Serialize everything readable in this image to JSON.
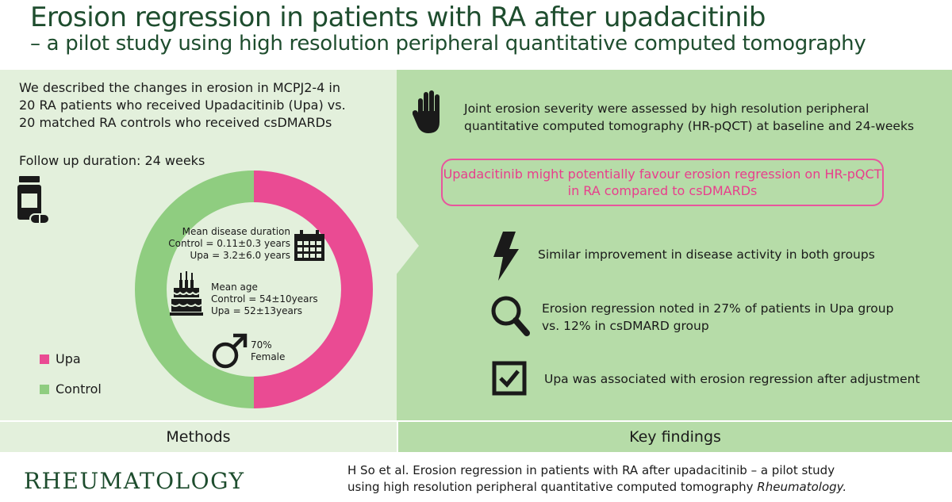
{
  "header": {
    "title": "Erosion regression in patients with RA after upadacitinib",
    "subtitle": "– a pilot study using high resolution peripheral quantitative computed tomography"
  },
  "methods": {
    "intro": [
      "We described the changes in erosion in MCPJ2-4 in",
      "20 RA patients who received Upadacitinib (Upa) vs.",
      "20 matched RA controls who received csDMARDs"
    ],
    "follow_up": "Follow up duration: 24 weeks",
    "disease_duration": {
      "title": "Mean disease duration",
      "control": "Control = 0.11±0.3 years",
      "upa": "Upa = 3.2±6.0 years"
    },
    "mean_age": {
      "title": "Mean age",
      "control": "Control = 54±10years",
      "upa": "Upa = 52±13years"
    },
    "female": {
      "percent": "70%",
      "label": "Female"
    },
    "legend": [
      {
        "label": "Upa",
        "color": "#ea4b93"
      },
      {
        "label": "Control",
        "color": "#8fcd80"
      }
    ],
    "donut": {
      "upa_fraction": 0.5,
      "control_fraction": 0.5
    },
    "label": "Methods"
  },
  "findings": {
    "assessment": [
      "Joint erosion severity were assessed by high resolution peripheral",
      "quantitative computed tomography (HR-pQCT) at baseline and 24-weeks"
    ],
    "highlight": [
      "Upadacitinib might potentially favour erosion regression on HR-pQCT",
      "in RA compared to csDMARDs"
    ],
    "disease_activity": "Similar improvement in disease activity in both groups",
    "erosion_regression": [
      "Erosion regression noted in 27% of patients in Upa group",
      "vs. 12% in csDMARD group"
    ],
    "adjustment": "Upa was associated with erosion regression after adjustment",
    "label": "Key findings"
  },
  "footer": {
    "brand": "RHEUMATOLOGY",
    "citation_line1": "H So et al. Erosion regression in patients with RA after upadacitinib – a pilot study",
    "citation_line2": "using high resolution peripheral quantitative computed tomography",
    "journal": "Rheumatology."
  },
  "colors": {
    "title": "#1e4d2e",
    "upa": "#ea4b93",
    "control": "#8fcd80",
    "left_panel": "#e3f0dc",
    "right_panel": "#b6dca8",
    "highlight_text": "#e83e8c"
  },
  "icons": [
    "pill-bottle-icon",
    "calendar-icon",
    "birthday-cake-icon",
    "male-symbol-icon",
    "hand-icon",
    "lightning-icon",
    "magnifier-icon",
    "checkbox-icon"
  ]
}
